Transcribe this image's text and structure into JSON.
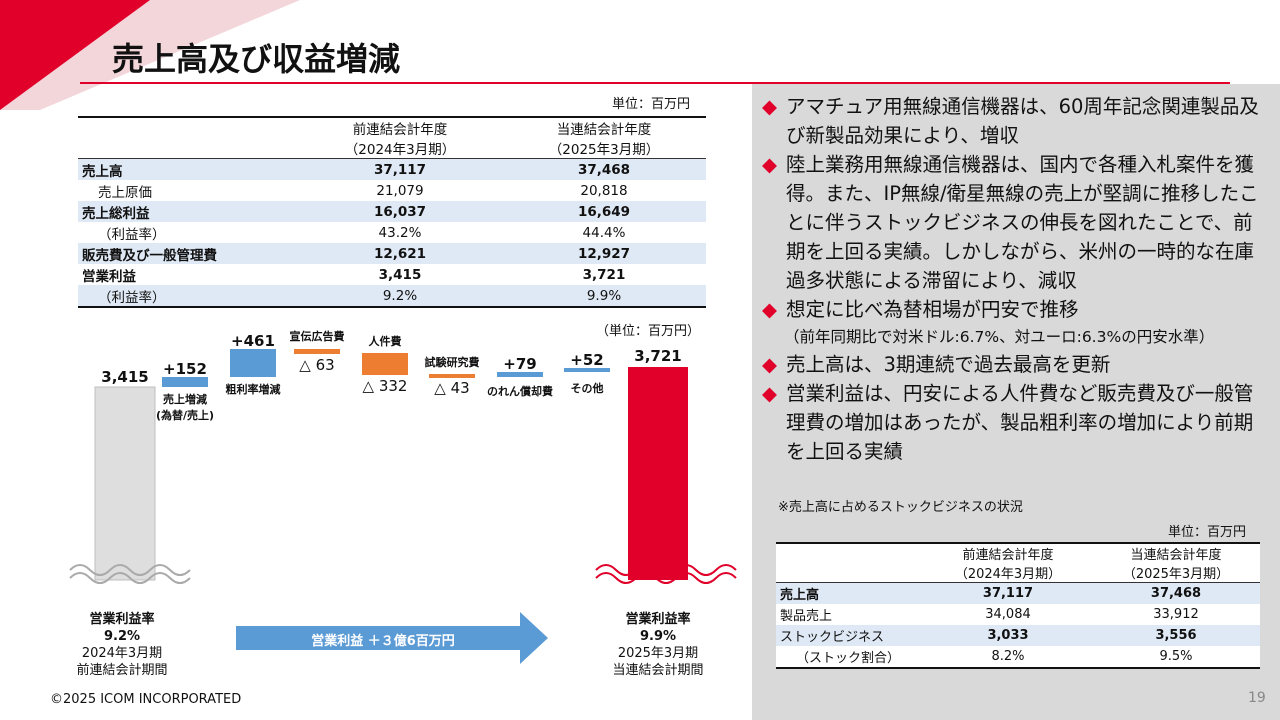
{
  "title": "売上高及び収益増減",
  "colors": {
    "accent": "#e0002a",
    "blue": "#5b9bd5",
    "orange": "#ed7d31",
    "gray_bar": "#dedede",
    "red_bar": "#e0002a",
    "panel": "#d9d9d9",
    "shade": "#dfe9f5"
  },
  "main_table": {
    "unit": "単位：百万円",
    "headers": [
      {
        "line1": "前連結会計年度",
        "line2": "（2024年3月期）"
      },
      {
        "line1": "当連結会計年度",
        "line2": "（2025年3月期）"
      }
    ],
    "rows": [
      {
        "label": "売上高",
        "prev": "37,117",
        "curr": "37,468"
      },
      {
        "label": "売上原価",
        "prev": "21,079",
        "curr": "20,818"
      },
      {
        "label": "売上総利益",
        "prev": "16,037",
        "curr": "16,649"
      },
      {
        "label": "（利益率）",
        "prev": "43.2%",
        "curr": "44.4%"
      },
      {
        "label": "販売費及び一般管理費",
        "prev": "12,621",
        "curr": "12,927"
      },
      {
        "label": "営業利益",
        "prev": "3,415",
        "curr": "3,721"
      },
      {
        "label": "（利益率）",
        "prev": "9.2%",
        "curr": "9.9%"
      }
    ]
  },
  "waterfall": {
    "unit": "（単位：百万円）",
    "start": {
      "value": "3,415",
      "label1": "営業利益率",
      "label2": "9.2%",
      "label3": "2024年3月期",
      "label4": "前連結会計期間"
    },
    "end": {
      "value": "3,721",
      "label1": "営業利益率",
      "label2": "9.9%",
      "label3": "2025年3月期",
      "label4": "当連結会計期間"
    },
    "steps": [
      {
        "value": "+152",
        "label": "売上増減\n(為替/売上)"
      },
      {
        "value": "+461",
        "label": "粗利率増減"
      },
      {
        "value": "△ 63",
        "label": "宣伝広告費"
      },
      {
        "value": "△ 332",
        "label": "人件費"
      },
      {
        "value": "△ 43",
        "label": "試験研究費"
      },
      {
        "value": "+79",
        "label": "のれん償却費"
      },
      {
        "value": "+52",
        "label": "その他"
      }
    ],
    "arrow_text": "営業利益 ＋３億6百万円"
  },
  "bullets": [
    "アマチュア用無線通信機器は、60周年記念関連製品及び新製品効果により、増収",
    "陸上業務用無線通信機器は、国内で各種入札案件を獲得。また、IP無線/衛星無線の売上が堅調に推移したことに伴うストックビジネスの伸長を図れたことで、前期を上回る実績。しかしながら、米州の一時的な在庫過多状態による滞留により、減収",
    "想定に比べ為替相場が円安で推移",
    "売上高は、3期連続で過去最高を更新",
    "営業利益は、円安による人件費など販売費及び一般管理費の増加はあったが、製品粗利率の増加により前期を上回る実績"
  ],
  "fx_note": "（前年同期比で対米ドル:6.7%、対ユーロ:6.3%の円安水準）",
  "stock_section": {
    "note": "※売上高に占めるストックビジネスの状況",
    "unit": "単位：百万円",
    "headers": [
      {
        "line1": "前連結会計年度",
        "line2": "（2024年3月期）"
      },
      {
        "line1": "当連結会計年度",
        "line2": "（2025年3月期）"
      }
    ],
    "rows": [
      {
        "label": "売上高",
        "prev": "37,117",
        "curr": "37,468"
      },
      {
        "label": "製品売上",
        "prev": "34,084",
        "curr": "33,912"
      },
      {
        "label": "ストックビジネス",
        "prev": "3,033",
        "curr": "3,556"
      },
      {
        "label": "（ストック割合）",
        "prev": "8.2%",
        "curr": "9.5%"
      }
    ]
  },
  "footer": "©2025 ICOM INCORPORATED",
  "page_number": "19"
}
